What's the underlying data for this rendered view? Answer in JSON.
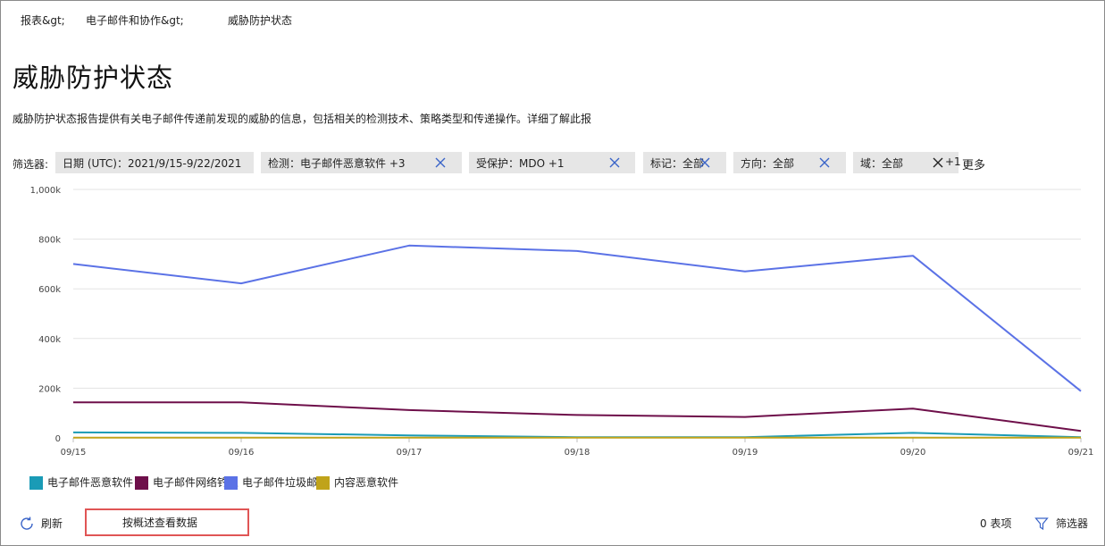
{
  "breadcrumb": {
    "items": [
      "报表&gt;",
      "电子邮件和协作&gt;",
      "威胁防护状态"
    ]
  },
  "page": {
    "title": "威胁防护状态",
    "description": "威胁防护状态报告提供有关电子邮件传递前发现的威胁的信息，包括相关的检测技术、策略类型和传递操作。详细了解此报"
  },
  "filters": {
    "label": "筛选器:",
    "chips": [
      {
        "label": "日期 (UTC)：2021/9/15-9/22/2021",
        "removable": false
      },
      {
        "label": "检测：电子邮件恶意软件 +3",
        "removable": true
      },
      {
        "label": "受保护：MDO +1",
        "removable": true
      },
      {
        "label": "标记：全部",
        "removable": true
      },
      {
        "label": "方向：全部",
        "removable": true
      },
      {
        "label": "域：全部",
        "removable": true,
        "extra": "+1"
      }
    ],
    "more": "更多"
  },
  "chart_data": {
    "type": "line",
    "categories": [
      "09/15",
      "09/16",
      "09/17",
      "09/18",
      "09/19",
      "09/20",
      "09/21"
    ],
    "y_ticks": [
      "0",
      "200k",
      "400k",
      "600k",
      "800k",
      "1,000k"
    ],
    "ylim": [
      0,
      1000000
    ],
    "grid": true,
    "legend_position": "bottom-left",
    "series": [
      {
        "name": "电子邮件恶意软件",
        "color": "#1a9bb6",
        "values": [
          22000,
          20000,
          10000,
          3000,
          3000,
          20000,
          3000
        ]
      },
      {
        "name": "电子邮件网络钓鱼",
        "color": "#6e0f4a",
        "values": [
          143000,
          143000,
          112000,
          92000,
          84000,
          118000,
          28000
        ]
      },
      {
        "name": "电子邮件垃圾邮件",
        "color": "#5b72e6",
        "values": [
          700000,
          622000,
          774000,
          752000,
          670000,
          733000,
          188000
        ]
      },
      {
        "name": "内容恶意软件",
        "color": "#c0a31a",
        "values": [
          1000,
          1000,
          1000,
          1000,
          1000,
          1000,
          1000
        ]
      }
    ]
  },
  "footer": {
    "refresh_label": "刷新",
    "view_overview_label": "按概述查看数据",
    "items_count": "0 表项",
    "filter_label": "筛选器"
  }
}
